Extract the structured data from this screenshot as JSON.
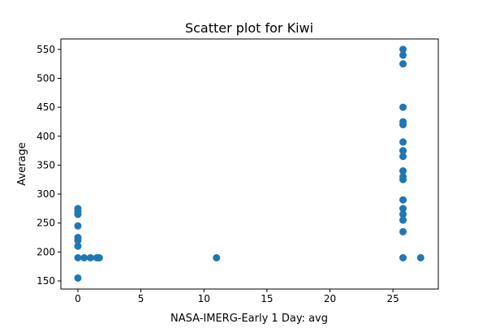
{
  "chart_data": {
    "type": "scatter",
    "title": "Scatter plot for Kiwi",
    "xlabel": "NASA-IMERG-Early 1 Day: avg",
    "ylabel": "Average",
    "xlim": [
      -1.35,
      28.6
    ],
    "ylim": [
      136,
      568
    ],
    "xticks": [
      0,
      5,
      10,
      15,
      20,
      25
    ],
    "yticks": [
      150,
      200,
      250,
      300,
      350,
      400,
      450,
      500,
      550
    ],
    "grid": false,
    "marker_color": "#1f77b4",
    "points": [
      {
        "x": 0,
        "y": 155
      },
      {
        "x": 0,
        "y": 190
      },
      {
        "x": 0,
        "y": 210
      },
      {
        "x": 0,
        "y": 220
      },
      {
        "x": 0,
        "y": 225
      },
      {
        "x": 0,
        "y": 245
      },
      {
        "x": 0,
        "y": 265
      },
      {
        "x": 0,
        "y": 270
      },
      {
        "x": 0,
        "y": 275
      },
      {
        "x": 0.5,
        "y": 190
      },
      {
        "x": 1.0,
        "y": 190
      },
      {
        "x": 1.5,
        "y": 190
      },
      {
        "x": 1.7,
        "y": 190
      },
      {
        "x": 11.0,
        "y": 190
      },
      {
        "x": 25.8,
        "y": 190
      },
      {
        "x": 25.8,
        "y": 235
      },
      {
        "x": 25.8,
        "y": 255
      },
      {
        "x": 25.8,
        "y": 265
      },
      {
        "x": 25.8,
        "y": 275
      },
      {
        "x": 25.8,
        "y": 290
      },
      {
        "x": 25.8,
        "y": 325
      },
      {
        "x": 25.8,
        "y": 330
      },
      {
        "x": 25.8,
        "y": 340
      },
      {
        "x": 25.8,
        "y": 365
      },
      {
        "x": 25.8,
        "y": 375
      },
      {
        "x": 25.8,
        "y": 390
      },
      {
        "x": 25.8,
        "y": 420
      },
      {
        "x": 25.8,
        "y": 425
      },
      {
        "x": 25.8,
        "y": 450
      },
      {
        "x": 25.8,
        "y": 525
      },
      {
        "x": 25.8,
        "y": 540
      },
      {
        "x": 25.8,
        "y": 550
      },
      {
        "x": 27.2,
        "y": 190
      }
    ]
  }
}
